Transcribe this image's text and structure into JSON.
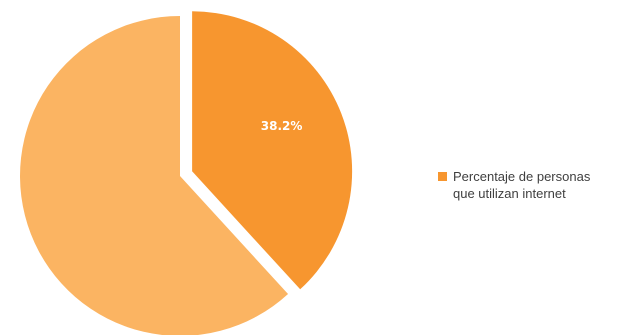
{
  "chart_data": {
    "type": "pie",
    "title": "",
    "start_angle_deg": 0,
    "direction": "clockwise",
    "slices": [
      {
        "label": "Percentaje de personas que utilizan internet",
        "value": 38.2,
        "data_label": "38.2%",
        "color": "#f7962f",
        "exploded": true,
        "in_legend": true
      },
      {
        "label": "",
        "value": 61.8,
        "data_label": "",
        "color": "#fbb462",
        "exploded": false,
        "in_legend": false
      }
    ],
    "legend": {
      "position": "right",
      "entries": [
        {
          "label": "Percentaje de personas\nque utilizan internet",
          "color": "#f7962f"
        }
      ]
    }
  }
}
